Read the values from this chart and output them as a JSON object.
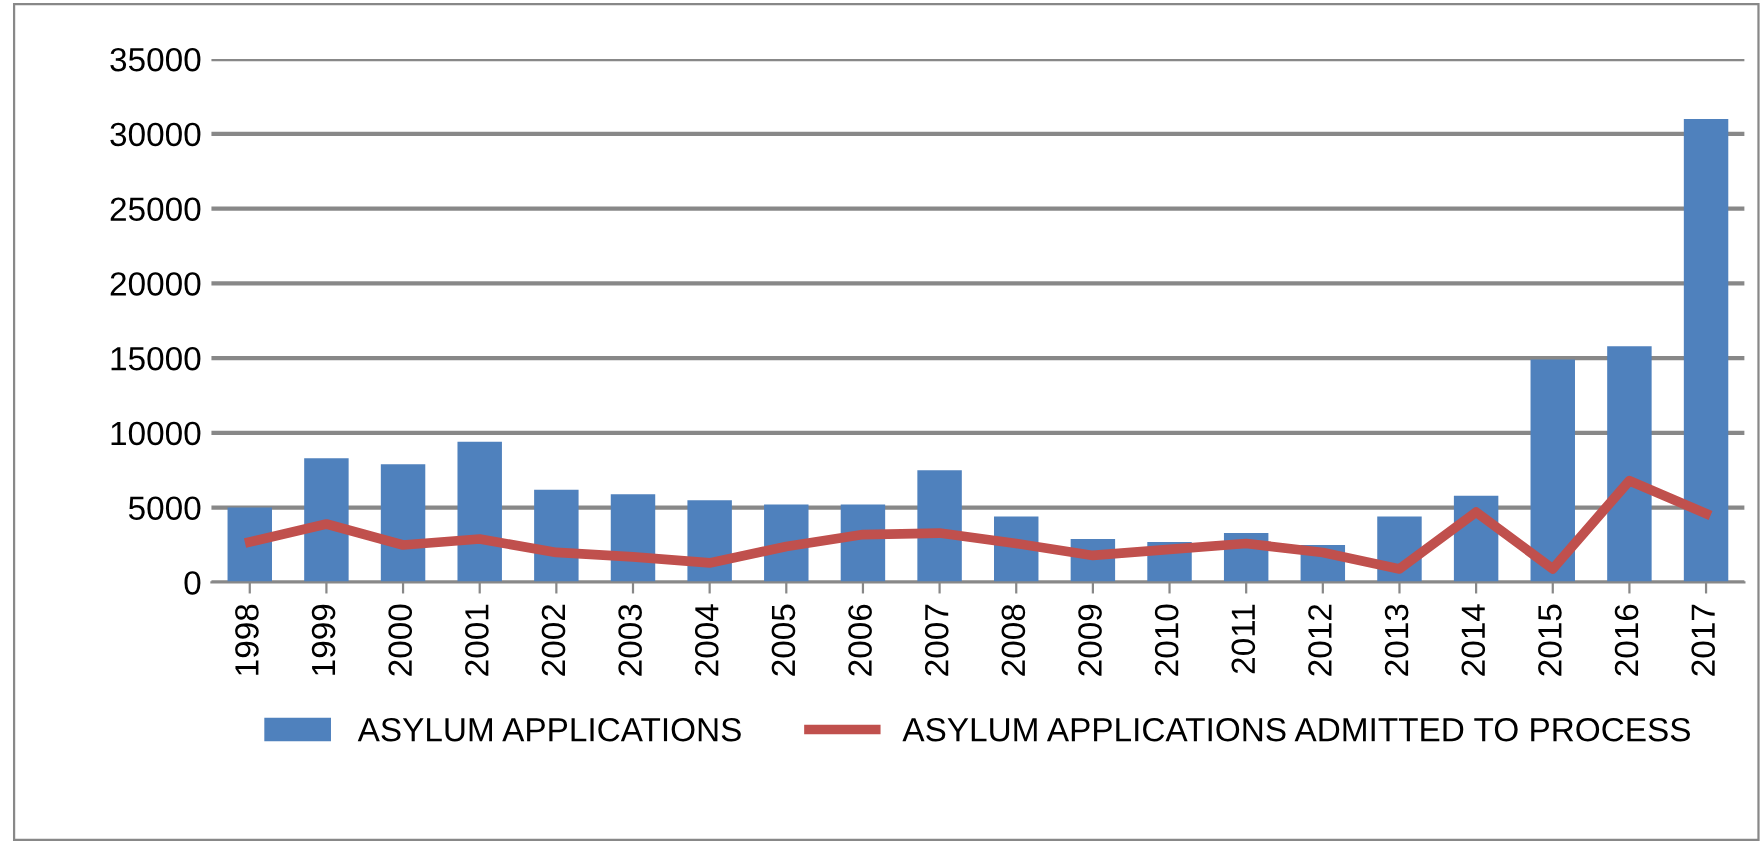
{
  "chart_data": {
    "type": "bar",
    "categories": [
      "1998",
      "1999",
      "2000",
      "2001",
      "2002",
      "2003",
      "2004",
      "2005",
      "2006",
      "2007",
      "2008",
      "2009",
      "2010",
      "2011",
      "2012",
      "2013",
      "2014",
      "2015",
      "2016",
      "2017"
    ],
    "series": [
      {
        "name": "ASYLUM APPLICATIONS",
        "color": "#4f81bd",
        "values": [
          5000,
          8300,
          7900,
          9400,
          6200,
          5900,
          5500,
          5200,
          5200,
          7500,
          4400,
          2900,
          2700,
          3300,
          2500,
          4400,
          5800,
          14900,
          15800,
          31000
        ]
      },
      {
        "name": "ASYLUM APPLICATIONS ADMITTED TO PROCESS",
        "type": "line",
        "color": "#c0504d",
        "values": [
          2700,
          3900,
          2500,
          2900,
          2000,
          1700,
          1300,
          2400,
          3200,
          3300,
          2600,
          1800,
          2200,
          2600,
          2000,
          900,
          4700,
          900,
          6800,
          4600
        ]
      }
    ],
    "ylim": [
      0,
      35000
    ],
    "yticks": [
      0,
      5000,
      10000,
      15000,
      20000,
      25000,
      30000,
      35000
    ],
    "grid": "y",
    "legend": "bottom",
    "marker": "none",
    "line_style": "solid"
  }
}
